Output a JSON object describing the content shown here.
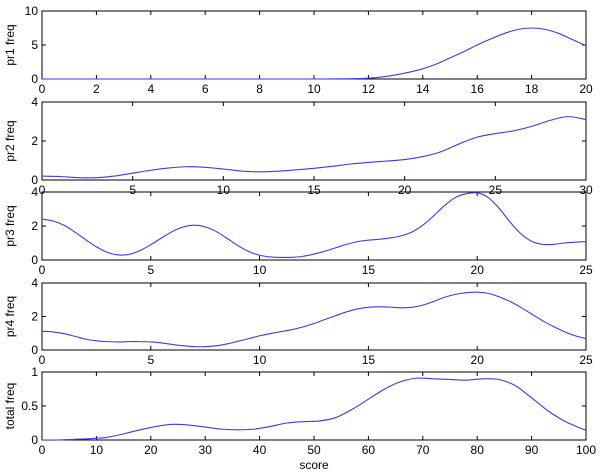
{
  "chart_data": [
    {
      "type": "line",
      "ylabel": "pr1 freq",
      "xlabel": "",
      "xlim": [
        0,
        20
      ],
      "ylim": [
        0,
        10
      ],
      "xticks": [
        0,
        2,
        4,
        6,
        8,
        10,
        12,
        14,
        16,
        18,
        20
      ],
      "yticks": [
        0,
        5,
        10
      ],
      "grid": false,
      "series": [
        {
          "color": "#3a3af0",
          "x": [
            0,
            2,
            4,
            6,
            8,
            10,
            11,
            11.5,
            12,
            12.5,
            13,
            13.5,
            14,
            14.5,
            15,
            15.5,
            16,
            16.5,
            17,
            17.5,
            18,
            18.5,
            19,
            19.5,
            20
          ],
          "y": [
            0,
            0,
            0,
            0,
            0,
            0,
            0.02,
            0.05,
            0.12,
            0.3,
            0.6,
            1.0,
            1.5,
            2.2,
            3.1,
            4.0,
            5.0,
            5.9,
            6.7,
            7.3,
            7.5,
            7.3,
            6.7,
            5.8,
            4.9
          ]
        }
      ]
    },
    {
      "type": "line",
      "ylabel": "pr2 freq",
      "xlabel": "",
      "xlim": [
        0,
        30
      ],
      "ylim": [
        0,
        4
      ],
      "xticks": [
        0,
        5,
        10,
        15,
        20,
        25,
        30
      ],
      "yticks": [
        0,
        2,
        4
      ],
      "grid": false,
      "series": [
        {
          "color": "#3a3af0",
          "x": [
            0,
            1,
            2,
            3,
            4,
            5,
            6,
            7,
            8,
            9,
            10,
            11,
            12,
            13,
            14,
            15,
            16,
            17,
            18,
            19,
            20,
            21,
            22,
            23,
            24,
            25,
            26,
            27,
            28,
            29,
            30
          ],
          "y": [
            0.2,
            0.18,
            0.12,
            0.12,
            0.2,
            0.35,
            0.5,
            0.62,
            0.68,
            0.65,
            0.56,
            0.46,
            0.42,
            0.45,
            0.52,
            0.6,
            0.7,
            0.82,
            0.9,
            0.97,
            1.05,
            1.2,
            1.45,
            1.85,
            2.2,
            2.38,
            2.52,
            2.75,
            3.05,
            3.25,
            3.1
          ]
        }
      ]
    },
    {
      "type": "line",
      "ylabel": "pr3 freq",
      "xlabel": "",
      "xlim": [
        0,
        25
      ],
      "ylim": [
        0,
        4
      ],
      "xticks": [
        0,
        5,
        10,
        15,
        20,
        25
      ],
      "yticks": [
        0,
        2,
        4
      ],
      "grid": false,
      "series": [
        {
          "color": "#3a3af0",
          "x": [
            0,
            0.5,
            1,
            1.5,
            2,
            2.5,
            3,
            3.5,
            4,
            4.5,
            5,
            5.5,
            6,
            6.5,
            7,
            7.5,
            8,
            8.5,
            9,
            9.5,
            10,
            10.5,
            11,
            11.5,
            12,
            12.5,
            13,
            13.5,
            14,
            14.5,
            15,
            15.5,
            16,
            16.5,
            17,
            17.5,
            18,
            18.5,
            19,
            19.5,
            20,
            20.5,
            21,
            21.5,
            22,
            22.5,
            23,
            23.5,
            24,
            24.5,
            25
          ],
          "y": [
            2.4,
            2.3,
            2.05,
            1.65,
            1.2,
            0.78,
            0.45,
            0.3,
            0.33,
            0.55,
            0.9,
            1.3,
            1.68,
            1.95,
            2.05,
            1.95,
            1.68,
            1.28,
            0.85,
            0.5,
            0.28,
            0.18,
            0.15,
            0.16,
            0.22,
            0.35,
            0.52,
            0.72,
            0.92,
            1.08,
            1.17,
            1.22,
            1.3,
            1.42,
            1.65,
            2.05,
            2.6,
            3.2,
            3.68,
            3.9,
            3.95,
            3.68,
            3.05,
            2.25,
            1.55,
            1.1,
            0.92,
            0.92,
            1.0,
            1.05,
            1.08
          ]
        }
      ]
    },
    {
      "type": "line",
      "ylabel": "pr4 freq",
      "xlabel": "",
      "xlim": [
        0,
        25
      ],
      "ylim": [
        0,
        4
      ],
      "xticks": [
        0,
        5,
        10,
        15,
        20,
        25
      ],
      "yticks": [
        0,
        2,
        4
      ],
      "grid": false,
      "series": [
        {
          "color": "#3a3af0",
          "x": [
            0,
            0.5,
            1,
            1.5,
            2,
            2.5,
            3,
            3.5,
            4,
            4.5,
            5,
            5.5,
            6,
            6.5,
            7,
            7.5,
            8,
            8.5,
            9,
            9.5,
            10,
            10.5,
            11,
            11.5,
            12,
            12.5,
            13,
            13.5,
            14,
            14.5,
            15,
            15.5,
            16,
            16.5,
            17,
            17.5,
            18,
            18.5,
            19,
            19.5,
            20,
            20.5,
            21,
            21.5,
            22,
            22.5,
            23,
            23.5,
            24,
            24.5,
            25
          ],
          "y": [
            1.12,
            1.08,
            0.98,
            0.82,
            0.65,
            0.55,
            0.5,
            0.48,
            0.5,
            0.5,
            0.48,
            0.42,
            0.33,
            0.25,
            0.2,
            0.2,
            0.25,
            0.36,
            0.52,
            0.68,
            0.85,
            0.98,
            1.1,
            1.22,
            1.38,
            1.58,
            1.82,
            2.05,
            2.28,
            2.45,
            2.55,
            2.58,
            2.56,
            2.52,
            2.55,
            2.68,
            2.9,
            3.15,
            3.32,
            3.42,
            3.45,
            3.38,
            3.18,
            2.9,
            2.55,
            2.15,
            1.75,
            1.4,
            1.1,
            0.85,
            0.68
          ]
        }
      ]
    },
    {
      "type": "line",
      "ylabel": "total freq",
      "xlabel": "score",
      "xlim": [
        0,
        100
      ],
      "ylim": [
        0,
        1
      ],
      "xticks": [
        0,
        10,
        20,
        30,
        40,
        50,
        60,
        70,
        80,
        90,
        100
      ],
      "yticks": [
        0,
        0.5,
        1
      ],
      "grid": false,
      "series": [
        {
          "color": "#3a3af0",
          "x": [
            0,
            3,
            6,
            9,
            12,
            15,
            18,
            21,
            24,
            27,
            30,
            33,
            36,
            39,
            42,
            45,
            48,
            51,
            54,
            57,
            60,
            63,
            66,
            69,
            72,
            75,
            78,
            81,
            84,
            87,
            90,
            93,
            96,
            100
          ],
          "y": [
            0.0,
            0.0,
            0.01,
            0.02,
            0.04,
            0.09,
            0.15,
            0.2,
            0.23,
            0.22,
            0.19,
            0.16,
            0.15,
            0.16,
            0.2,
            0.25,
            0.27,
            0.28,
            0.33,
            0.45,
            0.6,
            0.75,
            0.86,
            0.91,
            0.9,
            0.89,
            0.88,
            0.9,
            0.89,
            0.8,
            0.62,
            0.43,
            0.28,
            0.14
          ]
        }
      ]
    }
  ]
}
